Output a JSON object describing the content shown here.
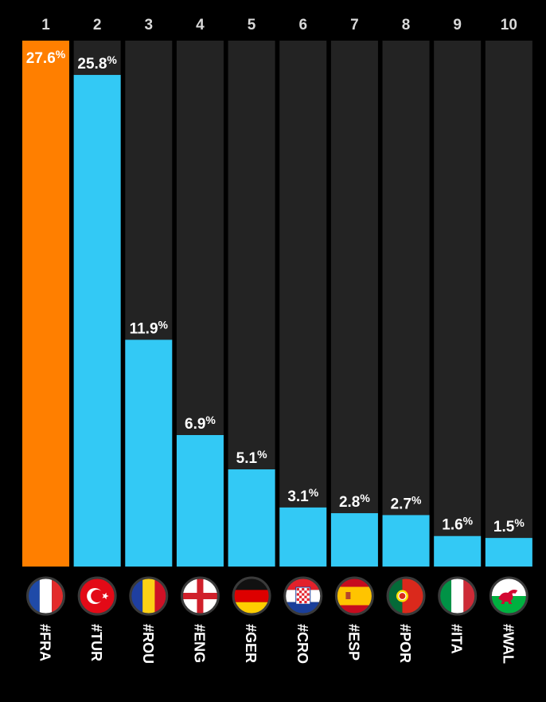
{
  "chart_data": {
    "type": "bar",
    "ylim": [
      0,
      27.6
    ],
    "ranks": [
      "1",
      "2",
      "3",
      "4",
      "5",
      "6",
      "7",
      "8",
      "9",
      "10"
    ],
    "categories": [
      "#FRA",
      "#TUR",
      "#ROU",
      "#ENG",
      "#GER",
      "#CRO",
      "#ESP",
      "#POR",
      "#ITA",
      "#WAL"
    ],
    "values": [
      27.6,
      25.8,
      11.9,
      6.9,
      5.1,
      3.1,
      2.8,
      2.7,
      1.6,
      1.5
    ],
    "value_labels": [
      "27.6",
      "25.8",
      "11.9",
      "6.9",
      "5.1",
      "3.1",
      "2.8",
      "2.7",
      "1.6",
      "1.5"
    ],
    "unit": "%",
    "flags": [
      "france-flag",
      "turkey-flag",
      "romania-flag",
      "england-flag",
      "germany-flag",
      "croatia-flag",
      "spain-flag",
      "portugal-flag",
      "italy-flag",
      "wales-flag"
    ],
    "colors": {
      "highlight": "#ff7f00",
      "bar": "#33c9f5",
      "track": "#232323",
      "background": "#000000"
    },
    "grid": false,
    "legend": "none"
  }
}
